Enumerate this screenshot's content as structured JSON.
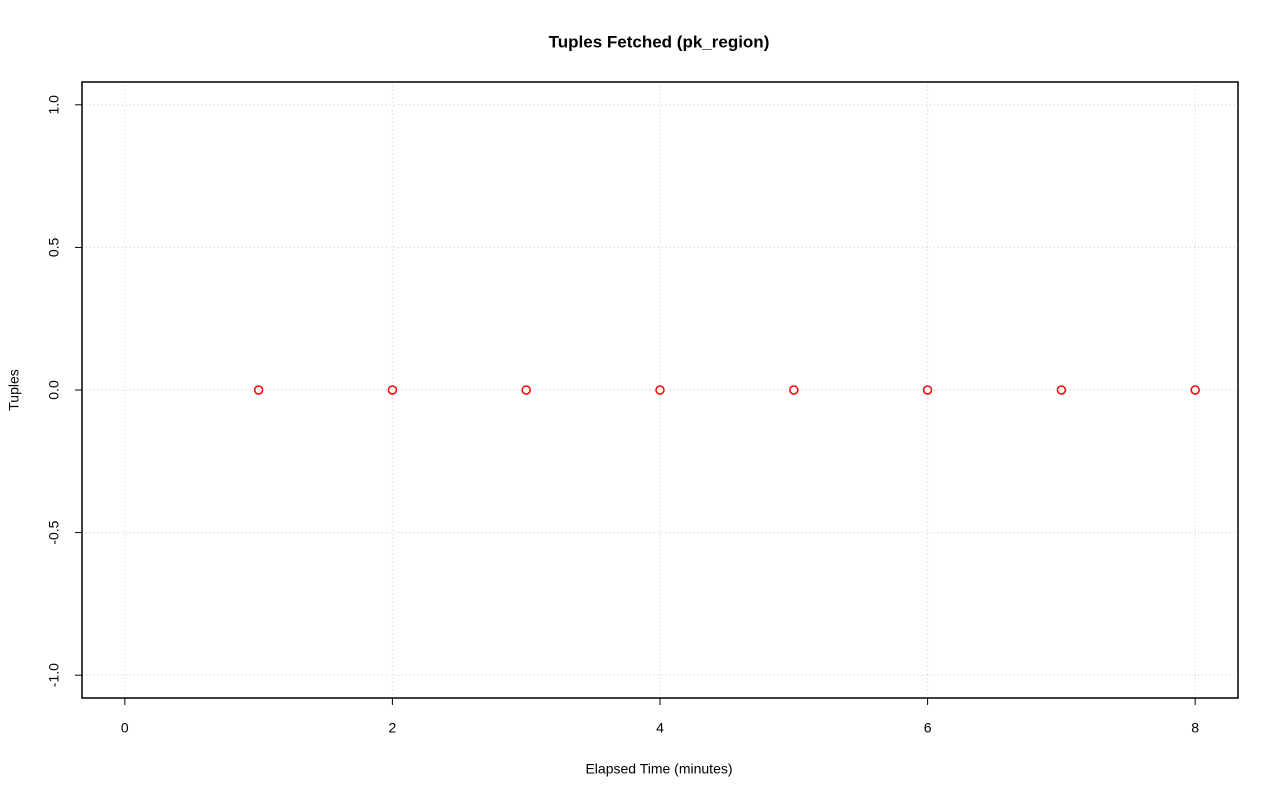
{
  "chart_data": {
    "type": "line",
    "title": "Tuples Fetched (pk_region)",
    "x_label": "Elapsed Time (minutes)",
    "y_label": "Tuples",
    "x": [
      1,
      2,
      3,
      4,
      5,
      6,
      7,
      8
    ],
    "values": [
      0,
      0,
      0,
      0,
      0,
      0,
      0,
      0
    ],
    "color": "#ff0000",
    "line_style": "dashed",
    "marker": "open-circle",
    "xlim": [
      -0.32,
      8.32
    ],
    "xticks": [
      0,
      2,
      4,
      6,
      8
    ],
    "ylim": [
      -1.08,
      1.08
    ],
    "yticks": [
      {
        "value": -1,
        "label": "-1.0"
      },
      -0.5,
      {
        "value": 0,
        "label": "0.0"
      },
      0.5,
      {
        "value": 1,
        "label": "1.0"
      }
    ],
    "grid": true
  }
}
